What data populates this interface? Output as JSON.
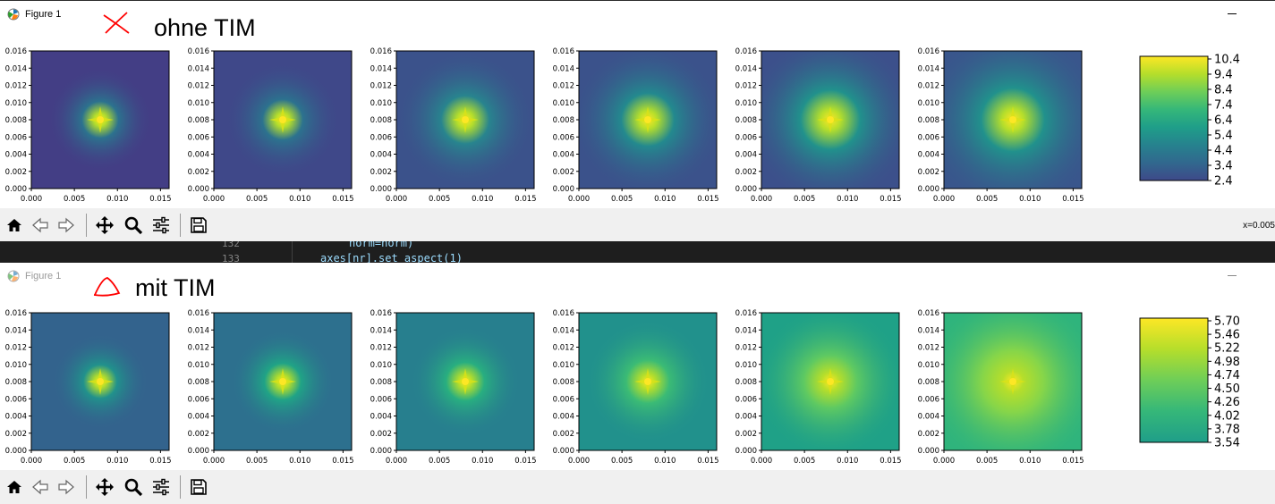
{
  "windows": [
    {
      "title": "Figure 1",
      "annotation": {
        "text": "ohne TIM",
        "mark": "red-x"
      },
      "colorbar": {
        "ticks": [
          "10.4",
          "9.4",
          "8.4",
          "7.4",
          "6.4",
          "5.4",
          "4.4",
          "3.4",
          "2.4"
        ]
      },
      "panels": [
        {
          "bg": "#433e85",
          "mid": "#2c728e",
          "halo": 0.38
        },
        {
          "bg": "#3f4889",
          "mid": "#2c728e",
          "halo": 0.42
        },
        {
          "bg": "#3b528b",
          "mid": "#28848e",
          "halo": 0.5
        },
        {
          "bg": "#3b528b",
          "mid": "#23898e",
          "halo": 0.55
        },
        {
          "bg": "#3c508b",
          "mid": "#21918c",
          "halo": 0.62
        },
        {
          "bg": "#39568c",
          "mid": "#21918c",
          "halo": 0.66
        }
      ],
      "coord_text": "x=0.005"
    },
    {
      "title": "Figure 1",
      "annotation": {
        "text": "mit TIM",
        "mark": "red-triangle"
      },
      "colorbar": {
        "ticks": [
          "5.70",
          "5.46",
          "5.22",
          "4.98",
          "4.74",
          "4.50",
          "4.26",
          "4.02",
          "3.78",
          "3.54"
        ]
      },
      "panels": [
        {
          "bg": "#33638d",
          "mid": "#21918c",
          "halo": 0.35
        },
        {
          "bg": "#2d708e",
          "mid": "#20a386",
          "halo": 0.38
        },
        {
          "bg": "#277f8e",
          "mid": "#28ae80",
          "halo": 0.4
        },
        {
          "bg": "#21918c",
          "mid": "#3bbb75",
          "halo": 0.45
        },
        {
          "bg": "#1fa187",
          "mid": "#5ec962",
          "halo": 0.55
        },
        {
          "bg": "#2fb47c",
          "mid": "#85d54a",
          "halo": 0.65
        }
      ]
    }
  ],
  "axes": {
    "yticks": [
      "0.016",
      "0.014",
      "0.012",
      "0.010",
      "0.008",
      "0.006",
      "0.004",
      "0.002",
      "0.000"
    ],
    "xticks": [
      "0.000",
      "0.005",
      "0.010",
      "0.015"
    ]
  },
  "editor": {
    "lines": [
      {
        "num": "132",
        "code": "norm=norm)"
      },
      {
        "num": "133",
        "code": "axes[nr].set_aspect(1)"
      }
    ]
  },
  "toolbar": {
    "buttons": [
      "home-icon",
      "back-icon",
      "forward-icon",
      "pan-icon",
      "zoom-icon",
      "configure-subplots-icon",
      "save-icon"
    ]
  },
  "colors": {
    "viridis_top": "#fde725",
    "annotation_red": "#ff0000"
  }
}
